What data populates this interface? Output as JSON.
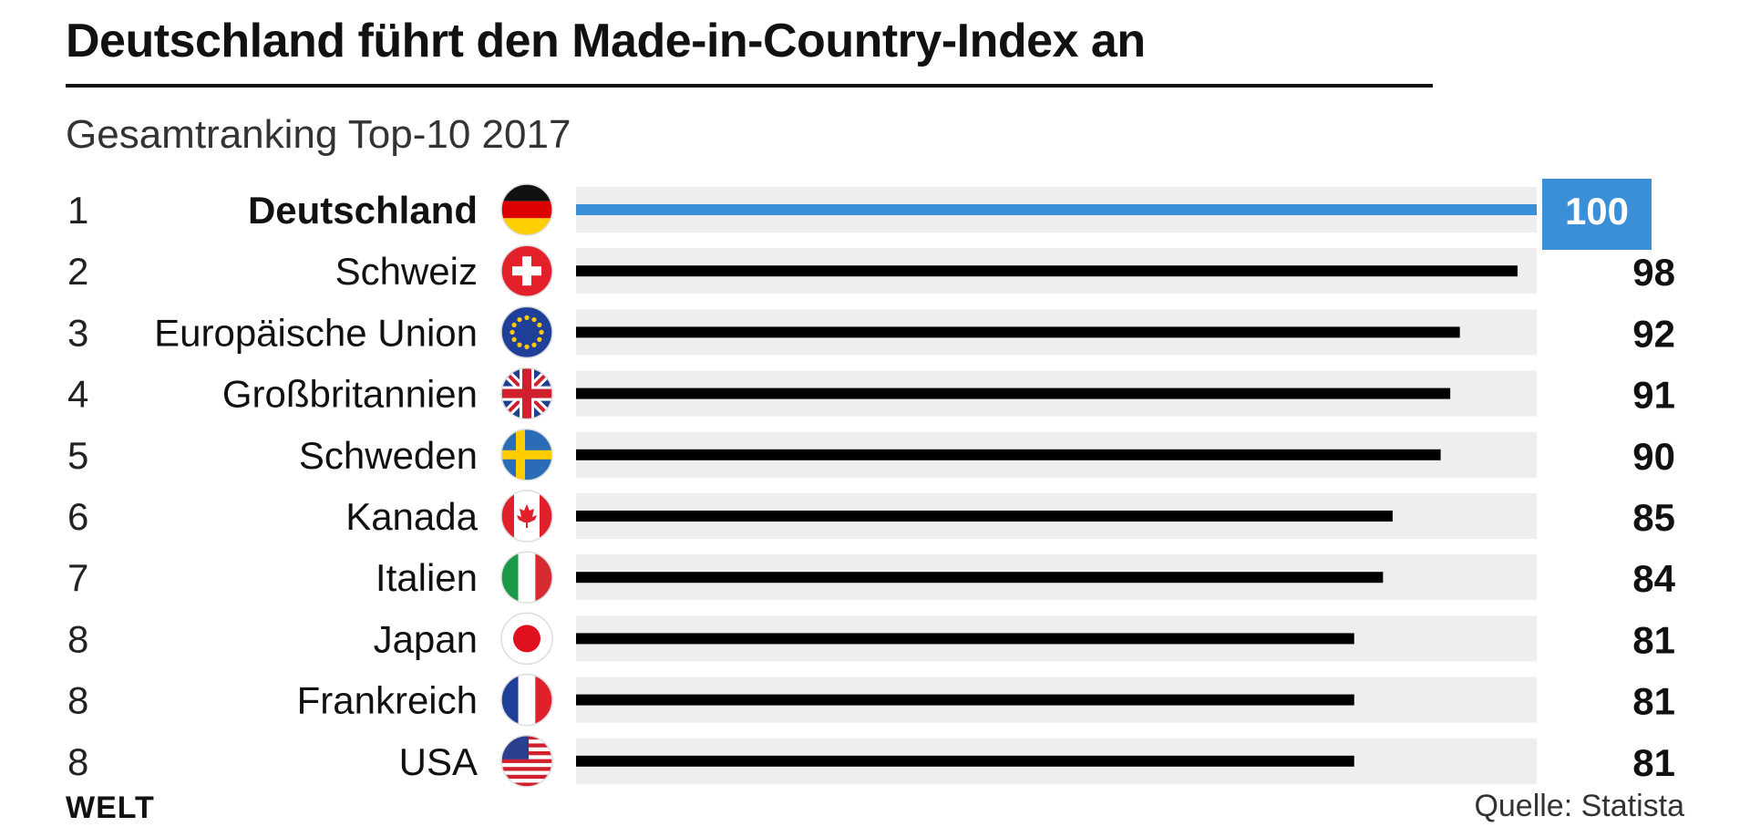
{
  "header": {
    "title": "Deutschland führt den Made-in-Country-Index an",
    "subtitle": "Gesamtranking Top-10 2017"
  },
  "footer": {
    "logo": "WELT",
    "source": "Quelle: Statista"
  },
  "colors": {
    "highlight": "#3a8fd6",
    "bar": "#000000",
    "track": "#eeeeee"
  },
  "chart_data": {
    "type": "bar",
    "orientation": "horizontal",
    "title": "Deutschland führt den Made-in-Country-Index an",
    "subtitle": "Gesamtranking Top-10 2017",
    "xlabel": "",
    "ylabel": "",
    "xlim": [
      0,
      100
    ],
    "grid": false,
    "ranks": [
      "1",
      "2",
      "3",
      "4",
      "5",
      "6",
      "7",
      "8",
      "8",
      "8"
    ],
    "categories": [
      "Deutschland",
      "Schweiz",
      "Europäische Union",
      "Großbritannien",
      "Schweden",
      "Kanada",
      "Italien",
      "Japan",
      "Frankreich",
      "USA"
    ],
    "values": [
      100,
      98,
      92,
      91,
      90,
      85,
      84,
      81,
      81,
      81
    ],
    "flag_icons": [
      "germany-flag-icon",
      "switzerland-flag-icon",
      "eu-flag-icon",
      "uk-flag-icon",
      "sweden-flag-icon",
      "canada-flag-icon",
      "italy-flag-icon",
      "japan-flag-icon",
      "france-flag-icon",
      "usa-flag-icon"
    ],
    "highlighted_index": 0
  }
}
